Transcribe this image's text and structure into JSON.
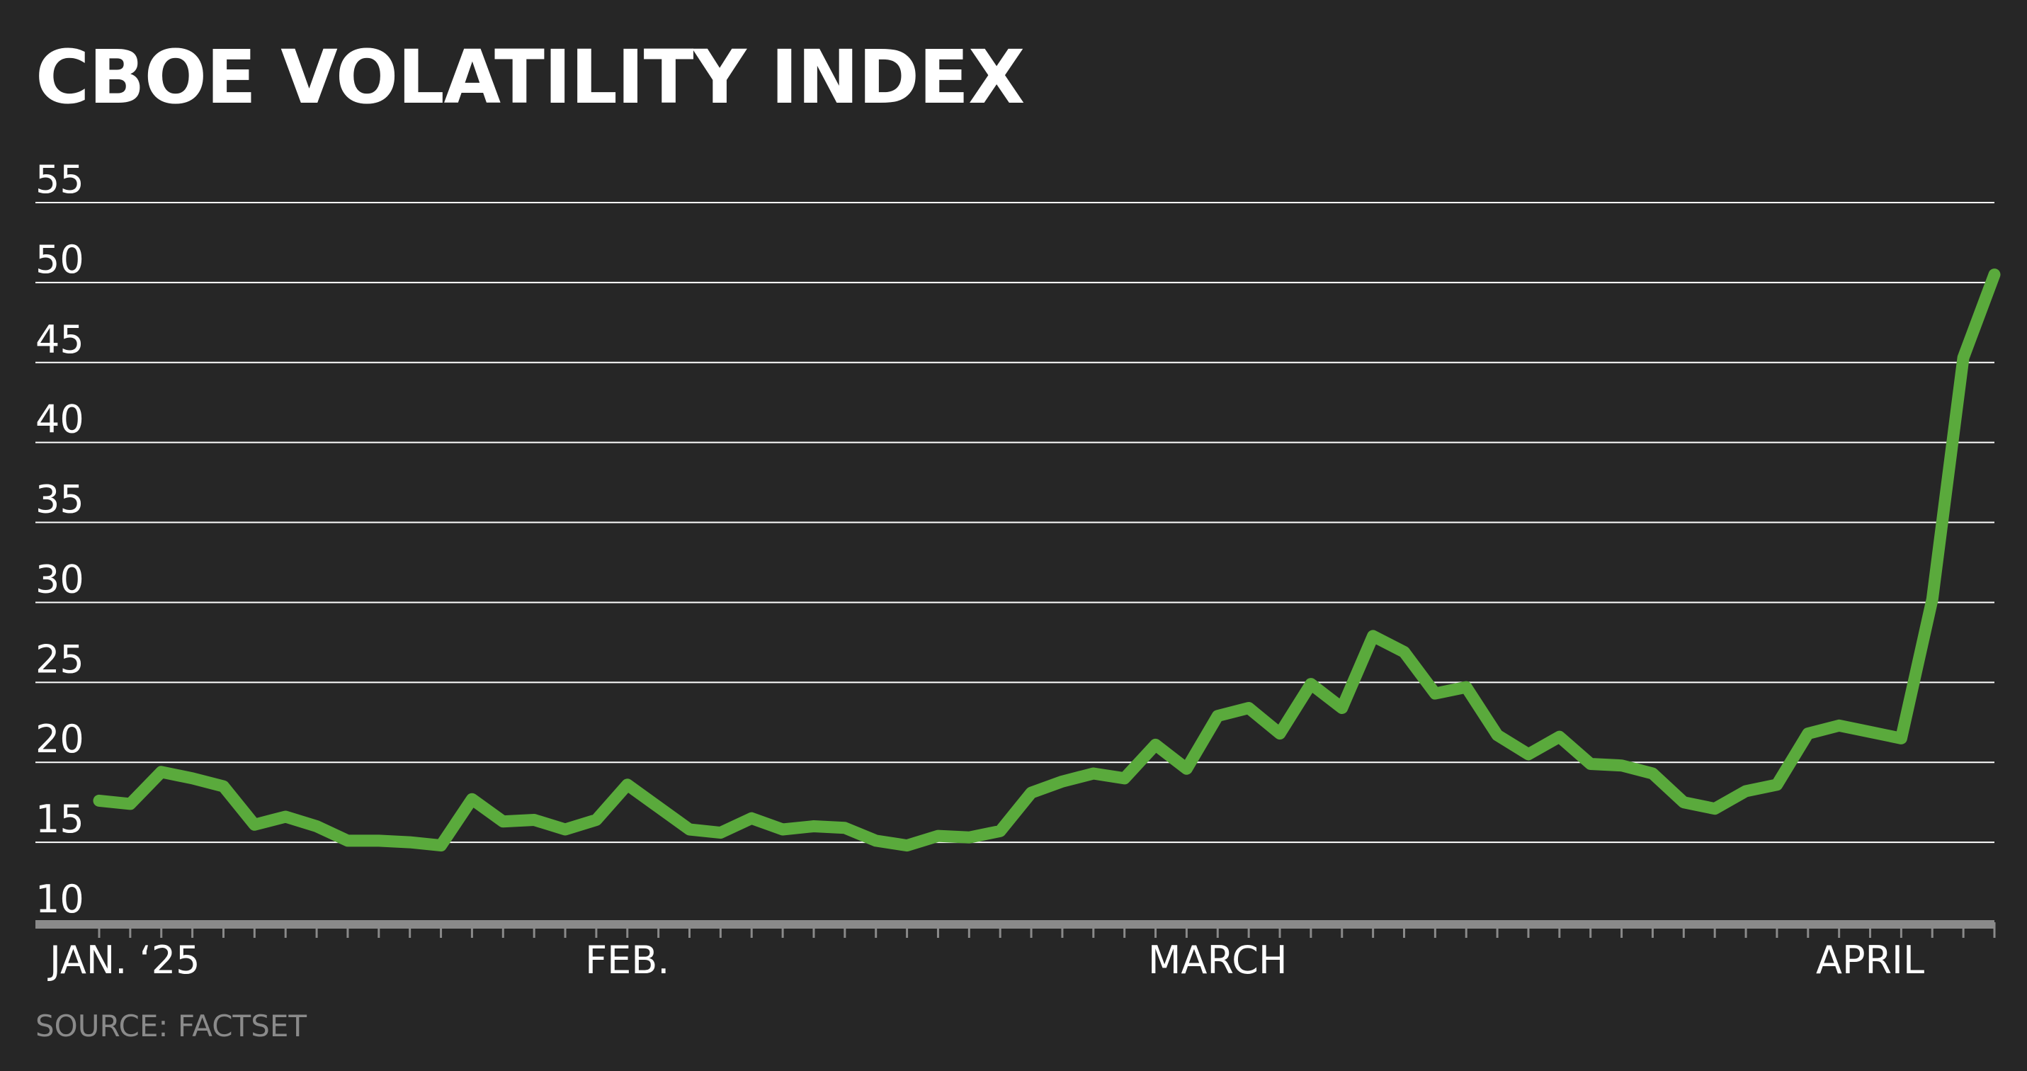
{
  "title": "CBOE VOLATILITY INDEX",
  "source": "SOURCE: FACTSET",
  "colors": {
    "background": "#262626",
    "line": "#5aaa3c",
    "grid": "#ffffff",
    "axis": "#8a8a8a",
    "source_text": "#8a8a8a"
  },
  "chart_data": {
    "type": "line",
    "title": "CBOE VOLATILITY INDEX",
    "xlabel": "",
    "ylabel": "",
    "ylim": [
      10,
      55
    ],
    "yticks": [
      10,
      15,
      20,
      25,
      30,
      35,
      40,
      45,
      50,
      55
    ],
    "ytick_labels": [
      "10",
      "15",
      "20",
      "25",
      "30",
      "35",
      "40",
      "45",
      "50",
      "55"
    ],
    "grid": true,
    "xtick_labels": [
      {
        "label": "JAN. ‘25",
        "index": 1
      },
      {
        "label": "FEB.",
        "index": 17
      },
      {
        "label": "MARCH",
        "index": 36
      },
      {
        "label": "APRIL",
        "index": 57
      }
    ],
    "series": [
      {
        "values": [
          17.6,
          17.4,
          19.4,
          19.0,
          18.5,
          16.1,
          16.6,
          16.0,
          15.1,
          15.1,
          15.0,
          14.8,
          17.7,
          16.3,
          16.4,
          15.8,
          16.4,
          18.6,
          17.2,
          15.8,
          15.6,
          16.5,
          15.8,
          16.0,
          15.9,
          15.1,
          14.8,
          15.4,
          15.3,
          15.7,
          18.1,
          18.8,
          19.3,
          19.0,
          21.1,
          19.6,
          22.9,
          23.4,
          21.8,
          24.9,
          23.4,
          27.9,
          26.9,
          24.3,
          24.7,
          21.7,
          20.5,
          21.6,
          19.9,
          19.8,
          19.3,
          17.5,
          17.1,
          18.2,
          18.6,
          21.8,
          22.3,
          21.9,
          21.5,
          30.2,
          45.3,
          50.5
        ]
      }
    ]
  }
}
